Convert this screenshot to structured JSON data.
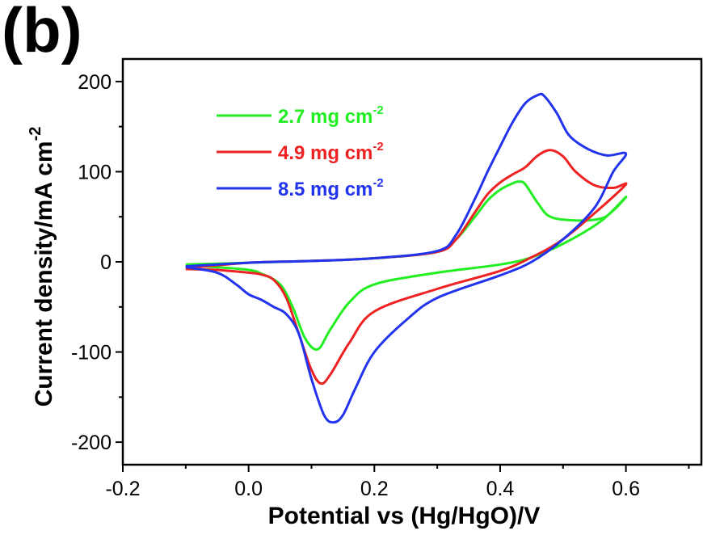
{
  "panel_label": "(b)",
  "chart_data": {
    "type": "line",
    "xlabel": "Potential vs (Hg/HgO)/V",
    "ylabel": "Current density/mA cm",
    "ylabel_sup": "-2",
    "xlim": [
      -0.2,
      0.72
    ],
    "ylim": [
      -225,
      225
    ],
    "xticks": [
      -0.2,
      0.0,
      0.2,
      0.4,
      0.6
    ],
    "xtick_labels": [
      "-0.2",
      "0.0",
      "0.2",
      "0.4",
      "0.6"
    ],
    "yticks": [
      200,
      100,
      0,
      -100,
      -200
    ],
    "ytick_labels": [
      "200",
      "100",
      "0",
      "-100",
      "-200"
    ],
    "grid": false,
    "legend_position": "top-left",
    "series": [
      {
        "name": "2.7 mg cm",
        "name_sup": "-2",
        "color": "#22ee22",
        "points": [
          [
            -0.1,
            -3
          ],
          [
            0.0,
            -1
          ],
          [
            0.1,
            1
          ],
          [
            0.2,
            4
          ],
          [
            0.3,
            11
          ],
          [
            0.33,
            25
          ],
          [
            0.36,
            50
          ],
          [
            0.38,
            68
          ],
          [
            0.4,
            80
          ],
          [
            0.42,
            87
          ],
          [
            0.43,
            89
          ],
          [
            0.44,
            86
          ],
          [
            0.46,
            65
          ],
          [
            0.48,
            50
          ],
          [
            0.52,
            46
          ],
          [
            0.56,
            48
          ],
          [
            0.58,
            57
          ],
          [
            0.6,
            72
          ],
          [
            0.56,
            45
          ],
          [
            0.5,
            20
          ],
          [
            0.45,
            5
          ],
          [
            0.4,
            -3
          ],
          [
            0.3,
            -12
          ],
          [
            0.2,
            -25
          ],
          [
            0.16,
            -45
          ],
          [
            0.13,
            -75
          ],
          [
            0.11,
            -97
          ],
          [
            0.09,
            -85
          ],
          [
            0.07,
            -50
          ],
          [
            0.05,
            -25
          ],
          [
            0.02,
            -13
          ],
          [
            0.0,
            -9
          ],
          [
            -0.05,
            -6
          ],
          [
            -0.1,
            -4
          ]
        ]
      },
      {
        "name": "4.9 mg cm",
        "name_sup": "-2",
        "color": "#ee2222",
        "points": [
          [
            -0.1,
            -7
          ],
          [
            0.0,
            -1
          ],
          [
            0.1,
            1
          ],
          [
            0.2,
            4
          ],
          [
            0.3,
            11
          ],
          [
            0.33,
            25
          ],
          [
            0.36,
            55
          ],
          [
            0.38,
            75
          ],
          [
            0.4,
            88
          ],
          [
            0.42,
            97
          ],
          [
            0.44,
            105
          ],
          [
            0.46,
            118
          ],
          [
            0.48,
            124
          ],
          [
            0.5,
            117
          ],
          [
            0.52,
            100
          ],
          [
            0.55,
            85
          ],
          [
            0.58,
            82
          ],
          [
            0.6,
            86
          ],
          [
            0.56,
            60
          ],
          [
            0.5,
            25
          ],
          [
            0.45,
            5
          ],
          [
            0.4,
            -10
          ],
          [
            0.3,
            -30
          ],
          [
            0.2,
            -55
          ],
          [
            0.16,
            -90
          ],
          [
            0.13,
            -125
          ],
          [
            0.115,
            -135
          ],
          [
            0.1,
            -120
          ],
          [
            0.08,
            -80
          ],
          [
            0.06,
            -40
          ],
          [
            0.04,
            -20
          ],
          [
            0.02,
            -14
          ],
          [
            0.0,
            -12
          ],
          [
            -0.05,
            -9
          ],
          [
            -0.1,
            -8
          ]
        ]
      },
      {
        "name": "8.5 mg cm",
        "name_sup": "-2",
        "color": "#2233ee",
        "points": [
          [
            -0.1,
            -5
          ],
          [
            0.0,
            -1
          ],
          [
            0.1,
            1
          ],
          [
            0.2,
            4
          ],
          [
            0.3,
            12
          ],
          [
            0.33,
            30
          ],
          [
            0.36,
            70
          ],
          [
            0.38,
            100
          ],
          [
            0.4,
            128
          ],
          [
            0.42,
            155
          ],
          [
            0.44,
            176
          ],
          [
            0.46,
            185
          ],
          [
            0.47,
            184
          ],
          [
            0.49,
            165
          ],
          [
            0.51,
            140
          ],
          [
            0.54,
            125
          ],
          [
            0.57,
            118
          ],
          [
            0.6,
            120
          ],
          [
            0.58,
            100
          ],
          [
            0.55,
            60
          ],
          [
            0.5,
            25
          ],
          [
            0.45,
            0
          ],
          [
            0.4,
            -15
          ],
          [
            0.3,
            -40
          ],
          [
            0.25,
            -65
          ],
          [
            0.2,
            -100
          ],
          [
            0.17,
            -140
          ],
          [
            0.15,
            -170
          ],
          [
            0.135,
            -178
          ],
          [
            0.12,
            -170
          ],
          [
            0.1,
            -130
          ],
          [
            0.08,
            -80
          ],
          [
            0.06,
            -58
          ],
          [
            0.04,
            -50
          ],
          [
            0.02,
            -42
          ],
          [
            0.0,
            -36
          ],
          [
            -0.02,
            -25
          ],
          [
            -0.05,
            -12
          ],
          [
            -0.1,
            -6
          ]
        ]
      }
    ]
  }
}
